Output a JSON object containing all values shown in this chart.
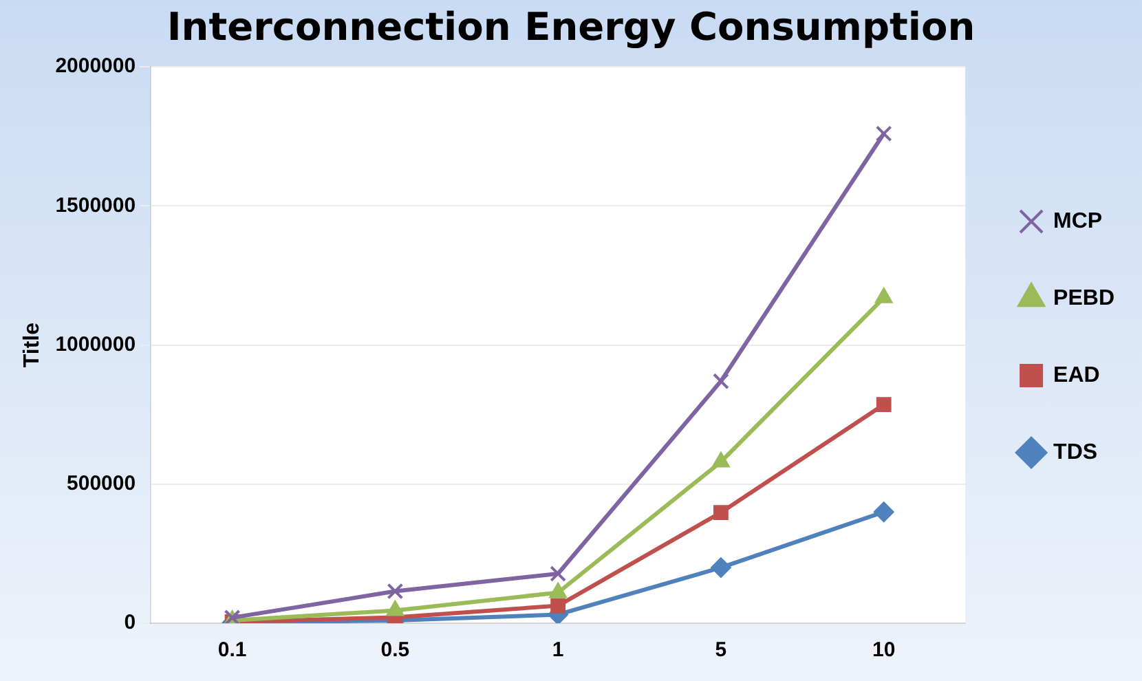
{
  "chart_data": {
    "type": "line",
    "title": "Interconnection Energy Consumption",
    "ylabel": "Title",
    "categories": [
      "0.1",
      "0.5",
      "1",
      "5",
      "10"
    ],
    "series": [
      {
        "name": "MCP",
        "color": "#7f64a2",
        "marker": "cross",
        "values": [
          20000,
          115000,
          178000,
          870000,
          1760000
        ]
      },
      {
        "name": "PEBD",
        "color": "#9bbb59",
        "marker": "triangle",
        "values": [
          10000,
          46000,
          110000,
          580000,
          1170000
        ]
      },
      {
        "name": "EAD",
        "color": "#c0504d",
        "marker": "square",
        "values": [
          5000,
          21000,
          63000,
          398000,
          786000
        ]
      },
      {
        "name": "TDS",
        "color": "#4f81bd",
        "marker": "diamond",
        "values": [
          2000,
          10000,
          31000,
          200000,
          400000
        ]
      }
    ],
    "ylim": [
      0,
      2000000
    ],
    "yticks": [
      0,
      500000,
      1000000,
      1500000,
      2000000
    ],
    "grid": "y",
    "legend": "right"
  }
}
